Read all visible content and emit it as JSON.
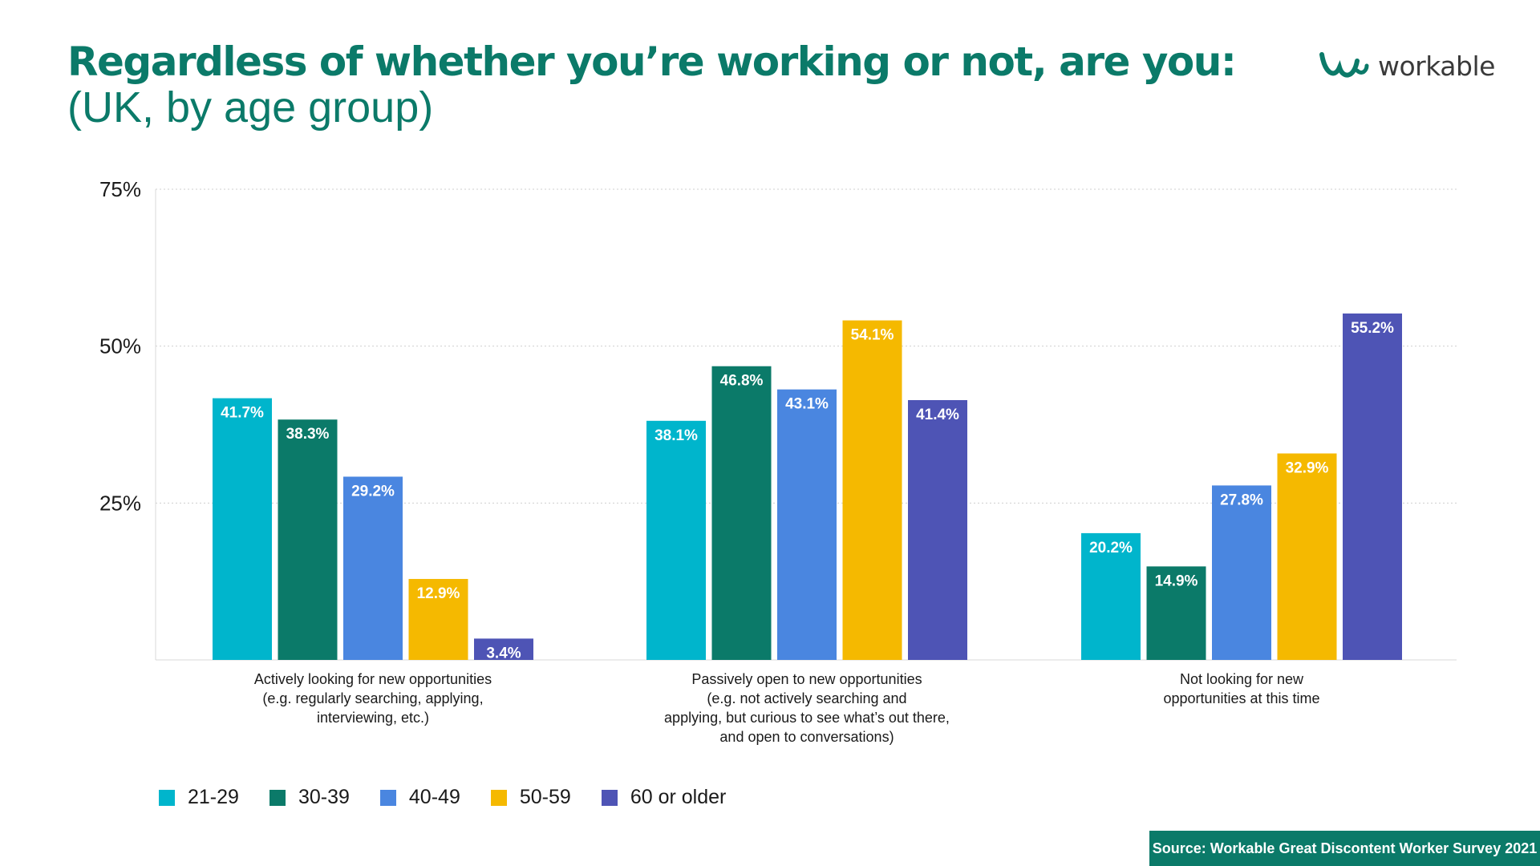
{
  "title": "Regardless of whether you’re working or not, are you:",
  "subtitle": "(UK, by age group)",
  "logo": {
    "text": "workable",
    "icon": "workable-logo-icon"
  },
  "source": "Source: Workable Great Discontent Worker Survey 2021",
  "colors": {
    "title": "#0b7a69",
    "series": [
      "#00b5cc",
      "#0b7a69",
      "#4a86e0",
      "#f5b900",
      "#4e54b5"
    ],
    "grid": "#cfcfcf",
    "source_bg": "#0b7a69"
  },
  "chart_data": {
    "type": "bar",
    "title": "Regardless of whether you’re working or not, are you:",
    "subtitle": "(UK, by age group)",
    "categories": [
      [
        "Actively looking for new opportunities",
        "(e.g. regularly searching, applying,",
        "interviewing, etc.)"
      ],
      [
        "Passively open to new opportunities",
        "(e.g. not actively searching and",
        "applying, but curious to see what’s out there,",
        "and open to conversations)"
      ],
      [
        "Not looking for new",
        "opportunities at this time"
      ]
    ],
    "series": [
      {
        "name": "21-29",
        "values": [
          41.7,
          38.1,
          20.2
        ]
      },
      {
        "name": "30-39",
        "values": [
          38.3,
          46.8,
          14.9
        ]
      },
      {
        "name": "40-49",
        "values": [
          29.2,
          43.1,
          27.8
        ]
      },
      {
        "name": "50-59",
        "values": [
          12.9,
          54.1,
          32.9
        ]
      },
      {
        "name": "60 or older",
        "values": [
          3.4,
          41.4,
          55.2
        ]
      }
    ],
    "data_labels": [
      [
        "41.7%",
        "38.1%",
        "20.2%"
      ],
      [
        "38.3%",
        "46.8%",
        "14.9%"
      ],
      [
        "29.2%",
        "43.1%",
        "27.8%"
      ],
      [
        "12.9%",
        "54.1%",
        "32.9%"
      ],
      [
        "3.4%",
        "41.4%",
        "55.2%"
      ]
    ],
    "yticks": [
      {
        "value": 25,
        "label": "25%"
      },
      {
        "value": 50,
        "label": "50%"
      },
      {
        "value": 75,
        "label": "75%"
      }
    ],
    "ylim": [
      0,
      75
    ],
    "grid": true,
    "legend_position": "bottom-left"
  }
}
